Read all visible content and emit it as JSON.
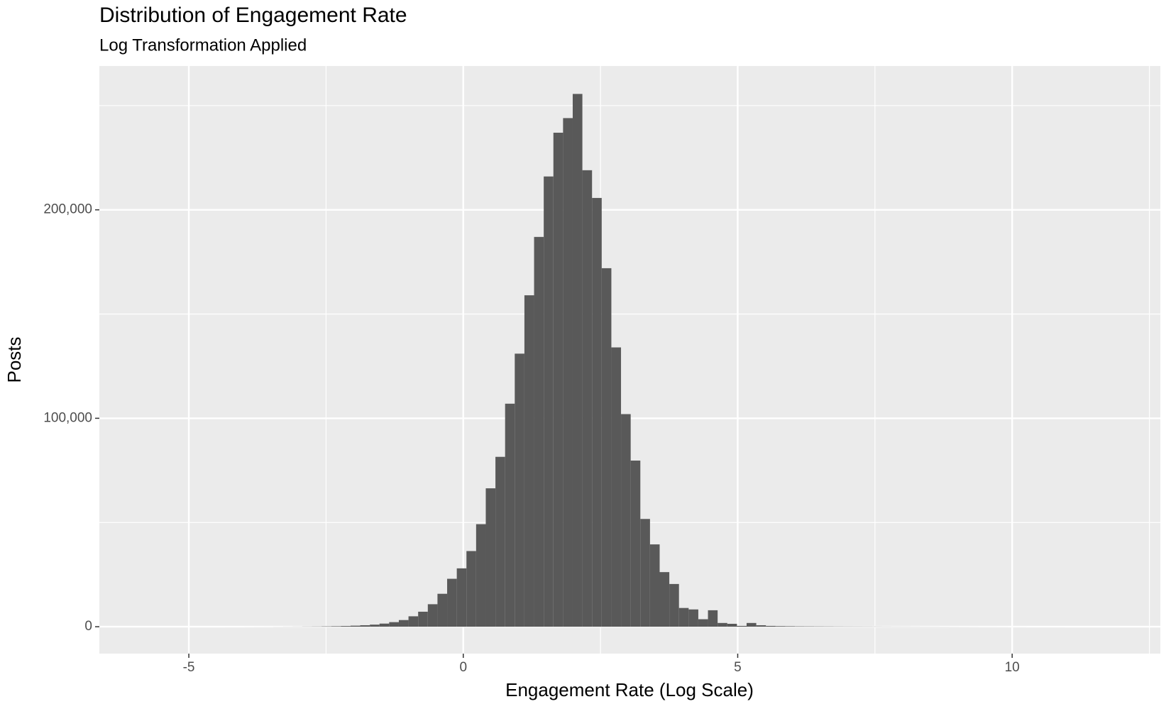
{
  "chart_data": {
    "type": "histogram",
    "title": "Distribution of Engagement Rate",
    "subtitle": "Log Transformation Applied",
    "x_label": "Engagement Rate (Log Scale)",
    "y_label": "Posts",
    "color": "#595959",
    "bins": [
      -5.75,
      -5.574,
      -5.398,
      -5.222,
      -5.046,
      -4.87,
      -4.694,
      -4.518,
      -4.342,
      -4.166,
      -3.99,
      -3.814,
      -3.638,
      -3.462,
      -3.286,
      -3.11,
      -2.934,
      -2.758,
      -2.582,
      -2.406,
      -2.23,
      -2.054,
      -1.878,
      -1.702,
      -1.526,
      -1.35,
      -1.174,
      -0.998,
      -0.822,
      -0.646,
      -0.47,
      -0.294,
      -0.118,
      0.058,
      0.234,
      0.41,
      0.586,
      0.762,
      0.938,
      1.114,
      1.29,
      1.466,
      1.642,
      1.818,
      1.994,
      2.17,
      2.346,
      2.522,
      2.698,
      2.874,
      3.05,
      3.226,
      3.402,
      3.578,
      3.754,
      3.93,
      4.106,
      4.282,
      4.458,
      4.634,
      4.81,
      4.986,
      5.162,
      5.338,
      5.514,
      5.69,
      5.866,
      6.042,
      6.218,
      6.394,
      6.57,
      6.746,
      6.922,
      7.098,
      7.274,
      7.45,
      7.626,
      7.802,
      7.978,
      8.154,
      8.33,
      8.506,
      8.682,
      8.858,
      9.034,
      9.21,
      9.386,
      9.562,
      9.738,
      9.914,
      10.09,
      10.266,
      10.442,
      10.618,
      10.794,
      10.97,
      11.146,
      11.322,
      11.498,
      11.674,
      11.85
    ],
    "values": [
      1,
      1,
      1,
      1,
      2,
      2,
      3,
      4,
      6,
      8,
      10,
      15,
      20,
      30,
      45,
      60,
      90,
      120,
      180,
      250,
      350,
      500,
      700,
      1000,
      1500,
      2200,
      3200,
      5000,
      7200,
      10800,
      15800,
      23000,
      28000,
      36300,
      49200,
      66400,
      81500,
      107000,
      131000,
      159000,
      187000,
      216000,
      237000,
      244000,
      255600,
      219000,
      205700,
      172000,
      134000,
      102000,
      79700,
      51700,
      39500,
      26200,
      20500,
      9000,
      8300,
      3600,
      7900,
      1800,
      1400,
      400,
      1800,
      700,
      400,
      300,
      250,
      200,
      180,
      160,
      140,
      120,
      110,
      100,
      90,
      80,
      70,
      60,
      55,
      50,
      45,
      40,
      35,
      30,
      25,
      22,
      20,
      18,
      15,
      12,
      10,
      8,
      7,
      6,
      5,
      4,
      3,
      2,
      2,
      1
    ],
    "xlim": [
      -6.63,
      12.7
    ],
    "ylim": [
      -12900,
      269000
    ],
    "xticks": [
      -5,
      0,
      5,
      10
    ],
    "yticks": [
      0,
      {
        "value": 100000,
        "label": "100,000"
      },
      {
        "value": 200000,
        "label": "200,000"
      }
    ],
    "x_minor_grid": [
      -2.5,
      2.5,
      7.5,
      12.5
    ],
    "y_minor_grid": [
      50000,
      150000,
      250000
    ],
    "grid": true
  }
}
